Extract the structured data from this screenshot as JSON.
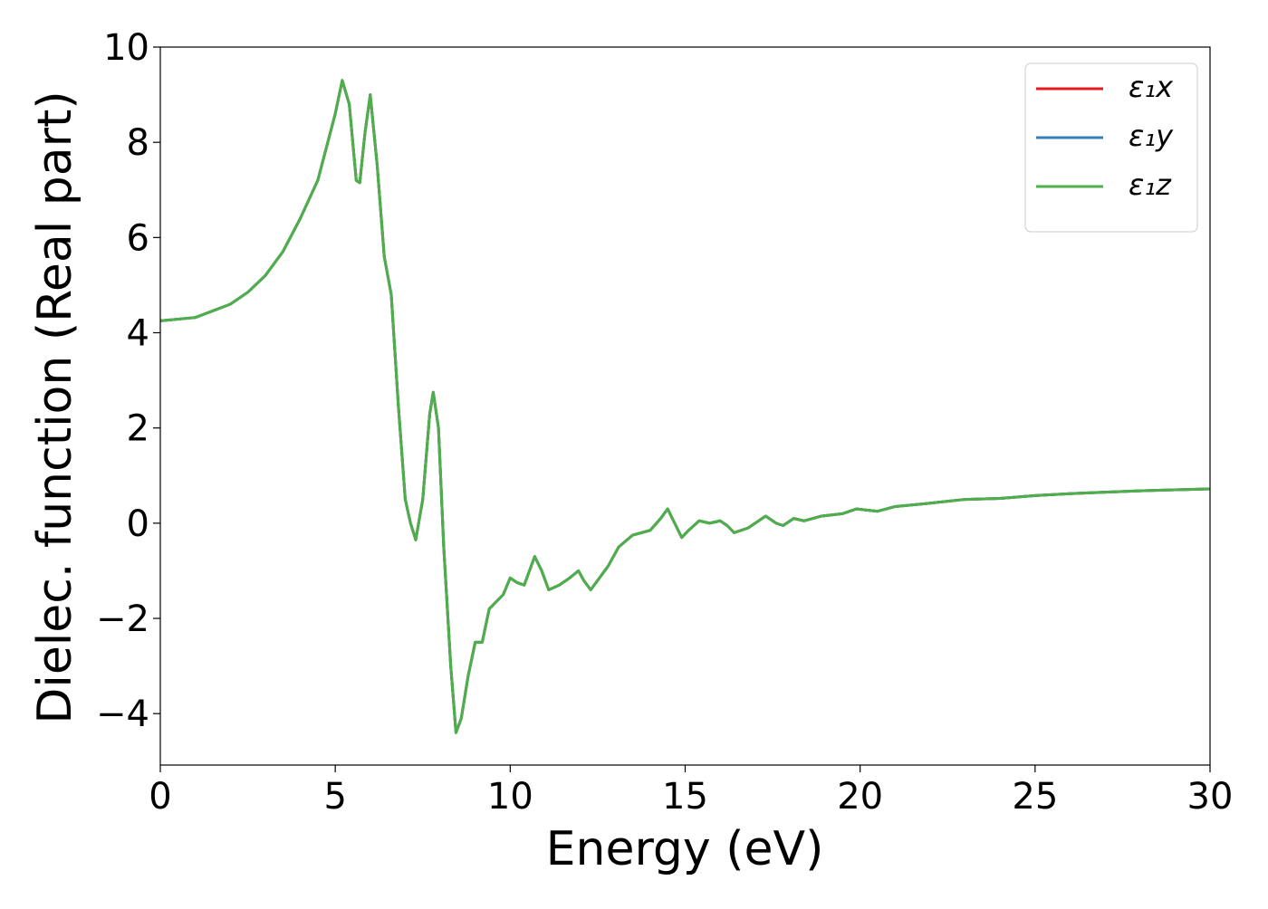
{
  "chart_data": {
    "type": "line",
    "xlabel": "Energy (eV)",
    "ylabel": "Dielec. function (Real part)",
    "x": [
      0,
      1,
      2,
      2.5,
      3,
      3.5,
      4,
      4.5,
      5,
      5.2,
      5.4,
      5.6,
      5.7,
      5.85,
      6.0,
      6.2,
      6.4,
      6.6,
      6.8,
      7.0,
      7.15,
      7.3,
      7.5,
      7.7,
      7.8,
      7.95,
      8.1,
      8.3,
      8.45,
      8.6,
      8.8,
      9.0,
      9.2,
      9.4,
      9.6,
      9.8,
      10.0,
      10.2,
      10.4,
      10.7,
      10.9,
      11.1,
      11.4,
      11.7,
      11.95,
      12.1,
      12.3,
      12.5,
      12.8,
      13.1,
      13.5,
      14.0,
      14.3,
      14.5,
      14.7,
      14.9,
      15.1,
      15.4,
      15.7,
      16.0,
      16.2,
      16.4,
      16.8,
      17.3,
      17.6,
      17.8,
      18.1,
      18.4,
      18.9,
      19.5,
      19.9,
      20.5,
      21,
      22,
      23,
      24,
      25,
      26,
      27,
      28,
      29,
      30
    ],
    "series": [
      {
        "name": "ε₁x",
        "color": "#e41a1c",
        "values": [
          4.25,
          4.32,
          4.6,
          4.85,
          5.2,
          5.7,
          6.4,
          7.2,
          8.6,
          9.3,
          8.8,
          7.2,
          7.15,
          8.2,
          9.0,
          7.5,
          5.6,
          4.8,
          2.5,
          0.5,
          0.0,
          -0.35,
          0.5,
          2.3,
          2.75,
          2.0,
          -0.5,
          -3.0,
          -4.4,
          -4.1,
          -3.2,
          -2.5,
          -2.5,
          -1.8,
          -1.65,
          -1.5,
          -1.15,
          -1.25,
          -1.3,
          -0.7,
          -1.0,
          -1.4,
          -1.3,
          -1.15,
          -1.0,
          -1.2,
          -1.4,
          -1.2,
          -0.9,
          -0.5,
          -0.25,
          -0.15,
          0.1,
          0.3,
          0.0,
          -0.3,
          -0.15,
          0.05,
          0.0,
          0.05,
          -0.05,
          -0.2,
          -0.1,
          0.15,
          0.0,
          -0.05,
          0.1,
          0.05,
          0.15,
          0.2,
          0.3,
          0.25,
          0.35,
          0.42,
          0.5,
          0.52,
          0.58,
          0.62,
          0.65,
          0.68,
          0.7,
          0.72
        ]
      },
      {
        "name": "ε₁y",
        "color": "#377eb8",
        "values": [
          4.25,
          4.32,
          4.6,
          4.85,
          5.2,
          5.7,
          6.4,
          7.2,
          8.6,
          9.3,
          8.8,
          7.2,
          7.15,
          8.2,
          9.0,
          7.5,
          5.6,
          4.8,
          2.5,
          0.5,
          0.0,
          -0.35,
          0.5,
          2.3,
          2.75,
          2.0,
          -0.5,
          -3.0,
          -4.4,
          -4.1,
          -3.2,
          -2.5,
          -2.5,
          -1.8,
          -1.65,
          -1.5,
          -1.15,
          -1.25,
          -1.3,
          -0.7,
          -1.0,
          -1.4,
          -1.3,
          -1.15,
          -1.0,
          -1.2,
          -1.4,
          -1.2,
          -0.9,
          -0.5,
          -0.25,
          -0.15,
          0.1,
          0.3,
          0.0,
          -0.3,
          -0.15,
          0.05,
          0.0,
          0.05,
          -0.05,
          -0.2,
          -0.1,
          0.15,
          0.0,
          -0.05,
          0.1,
          0.05,
          0.15,
          0.2,
          0.3,
          0.25,
          0.35,
          0.42,
          0.5,
          0.52,
          0.58,
          0.62,
          0.65,
          0.68,
          0.7,
          0.72
        ]
      },
      {
        "name": "ε₁z",
        "color": "#4daf4a",
        "values": [
          4.25,
          4.32,
          4.6,
          4.85,
          5.2,
          5.7,
          6.4,
          7.2,
          8.6,
          9.3,
          8.8,
          7.2,
          7.15,
          8.2,
          9.0,
          7.5,
          5.6,
          4.8,
          2.5,
          0.5,
          0.0,
          -0.35,
          0.5,
          2.3,
          2.75,
          2.0,
          -0.5,
          -3.0,
          -4.4,
          -4.1,
          -3.2,
          -2.5,
          -2.5,
          -1.8,
          -1.65,
          -1.5,
          -1.15,
          -1.25,
          -1.3,
          -0.7,
          -1.0,
          -1.4,
          -1.3,
          -1.15,
          -1.0,
          -1.2,
          -1.4,
          -1.2,
          -0.9,
          -0.5,
          -0.25,
          -0.15,
          0.1,
          0.3,
          0.0,
          -0.3,
          -0.15,
          0.05,
          0.0,
          0.05,
          -0.05,
          -0.2,
          -0.1,
          0.15,
          0.0,
          -0.05,
          0.1,
          0.05,
          0.15,
          0.2,
          0.3,
          0.25,
          0.35,
          0.42,
          0.5,
          0.52,
          0.58,
          0.62,
          0.65,
          0.68,
          0.7,
          0.72
        ]
      }
    ],
    "xlim": [
      0,
      30
    ],
    "xticks": [
      0,
      5,
      10,
      15,
      20,
      25,
      30
    ],
    "ylim": [
      -5.08,
      10
    ],
    "yticks": [
      {
        "value": -4,
        "label": "−4"
      },
      {
        "value": -2,
        "label": "−2"
      },
      0,
      2,
      4,
      6,
      8,
      10
    ],
    "legend": "upper right",
    "grid": false
  }
}
